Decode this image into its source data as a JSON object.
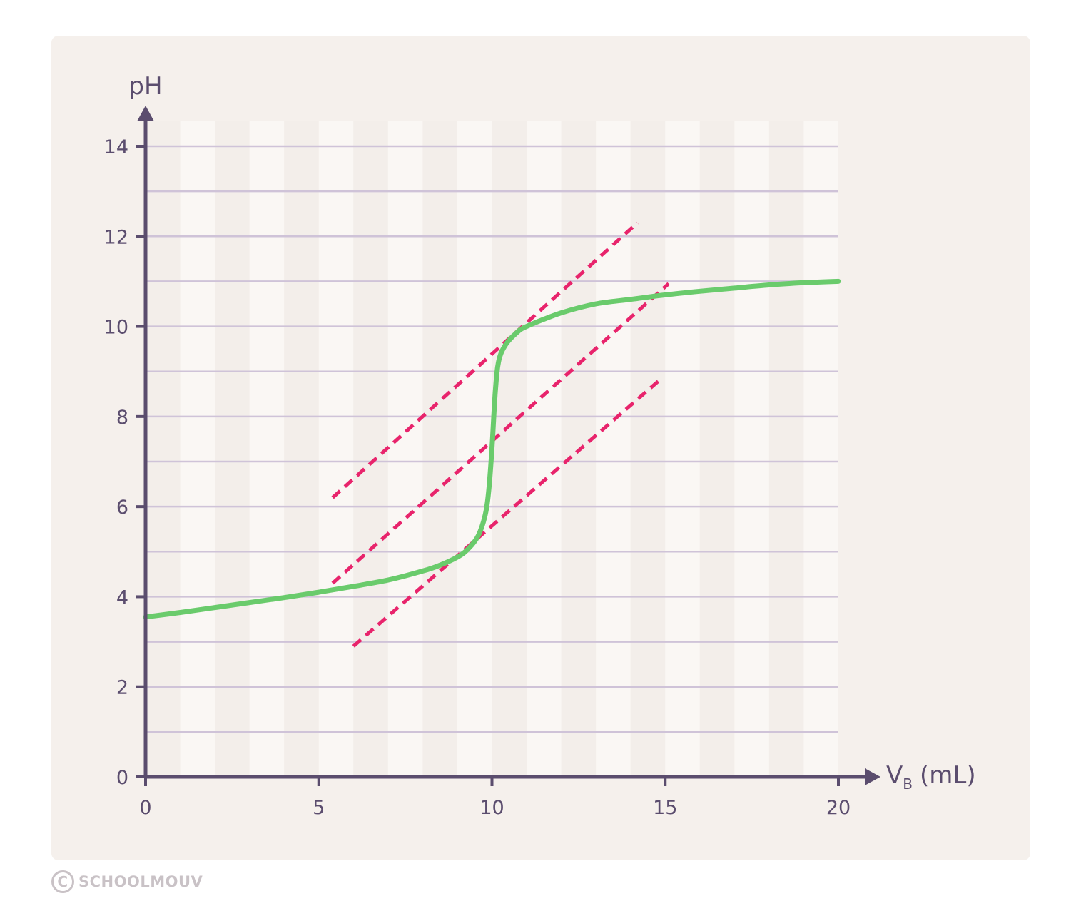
{
  "chart_data": {
    "type": "line",
    "xlabel": "V",
    "xlabel_sub": "B",
    "xlabel_unit": "(mL)",
    "ylabel": "pH",
    "xlim": [
      0,
      20
    ],
    "ylim": [
      0,
      14
    ],
    "x_ticks": [
      "0",
      "5",
      "10",
      "15",
      "20"
    ],
    "y_ticks": [
      "0",
      "2",
      "4",
      "6",
      "8",
      "10",
      "12",
      "14"
    ],
    "grid": "horizontal every 1 pH unit, alternating vertical bands every 1 mL",
    "series": [
      {
        "color": "#6acb6c",
        "x": [
          0,
          1,
          2,
          3,
          4,
          5,
          6,
          7,
          8,
          8.5,
          9,
          9.3,
          9.6,
          9.8,
          9.9,
          10,
          10.1,
          10.2,
          10.4,
          10.7,
          11,
          12,
          13,
          14,
          15,
          16,
          17,
          18,
          19,
          20
        ],
        "y": [
          3.55,
          3.65,
          3.76,
          3.87,
          3.98,
          4.1,
          4.23,
          4.37,
          4.57,
          4.7,
          4.88,
          5.05,
          5.35,
          5.8,
          6.3,
          7.3,
          8.6,
          9.25,
          9.6,
          9.85,
          10.0,
          10.3,
          10.5,
          10.6,
          10.7,
          10.78,
          10.85,
          10.92,
          10.97,
          11.0
        ]
      }
    ],
    "tangent_lines": [
      {
        "color": "#e8246c",
        "style": "dashed",
        "x": [
          5.4,
          14.2
        ],
        "y": [
          6.2,
          12.3
        ]
      },
      {
        "color": "#e8246c",
        "style": "dashed",
        "x": [
          5.4,
          15.1
        ],
        "y": [
          4.3,
          10.95
        ]
      },
      {
        "color": "#e8246c",
        "style": "dashed",
        "x": [
          6.0,
          14.9
        ],
        "y": [
          2.9,
          8.85
        ]
      }
    ]
  },
  "watermark": {
    "symbol": "C",
    "text": "SCHOOLMOUV"
  }
}
